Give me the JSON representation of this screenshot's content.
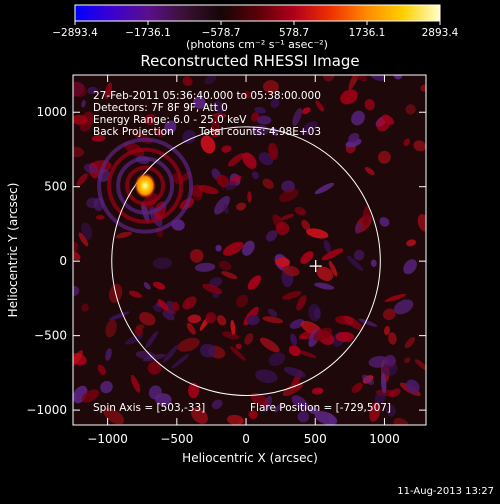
{
  "colorbar": {
    "ticks": [
      "−2893.4",
      "−1736.1",
      "−578.7",
      "578.7",
      "1736.1",
      "2893.4"
    ],
    "unit_label": "(photons cm⁻² s⁻¹ asec⁻²)",
    "colors": [
      "#0000ff",
      "#3c00d0",
      "#5a0f8c",
      "#3a1034",
      "#160606",
      "#5a0008",
      "#b0001a",
      "#ef3000",
      "#ff8a00",
      "#ffd000",
      "#ffffcc"
    ]
  },
  "title": "Reconstructed RHESSI Image",
  "info": {
    "line1": "27-Feb-2011 05:36:40.000 to 05:38:00.000",
    "line2": "Detectors: 7F 8F 9F, Att 0",
    "line3": "Energy Range: 6.0 - 25.0 keV",
    "line4a": "Back Projection",
    "line4b": "Total counts: 4.98E+03"
  },
  "footer": {
    "spin_axis": "Spin Axis = [503,-33]",
    "flare_position": "Flare Position = [-729,507]"
  },
  "timestamp": "11-Aug-2013 13:27",
  "chart_data": {
    "type": "heatmap",
    "title": "Reconstructed RHESSI Image",
    "xlabel": "Heliocentric X (arcsec)",
    "ylabel": "Heliocentric Y (arcsec)",
    "xlim": [
      -1250,
      1300
    ],
    "ylim": [
      -1100,
      1250
    ],
    "x_ticks": [
      -1000,
      -500,
      0,
      500,
      1000
    ],
    "y_ticks": [
      -1000,
      -500,
      0,
      500,
      1000
    ],
    "x_tick_labels": [
      "−1000",
      "−500",
      "0",
      "500",
      "1000"
    ],
    "y_tick_labels": [
      "−1000",
      "−500",
      "0",
      "500",
      "1000"
    ],
    "colorbar_range": [
      -2893.4,
      2893.4
    ],
    "solar_limb": {
      "center": [
        0,
        0
      ],
      "radius_arcsec": 970
    },
    "flare_source": {
      "x": -729,
      "y": 507
    },
    "spin_axis_marker": {
      "x": 503,
      "y": -33
    }
  }
}
